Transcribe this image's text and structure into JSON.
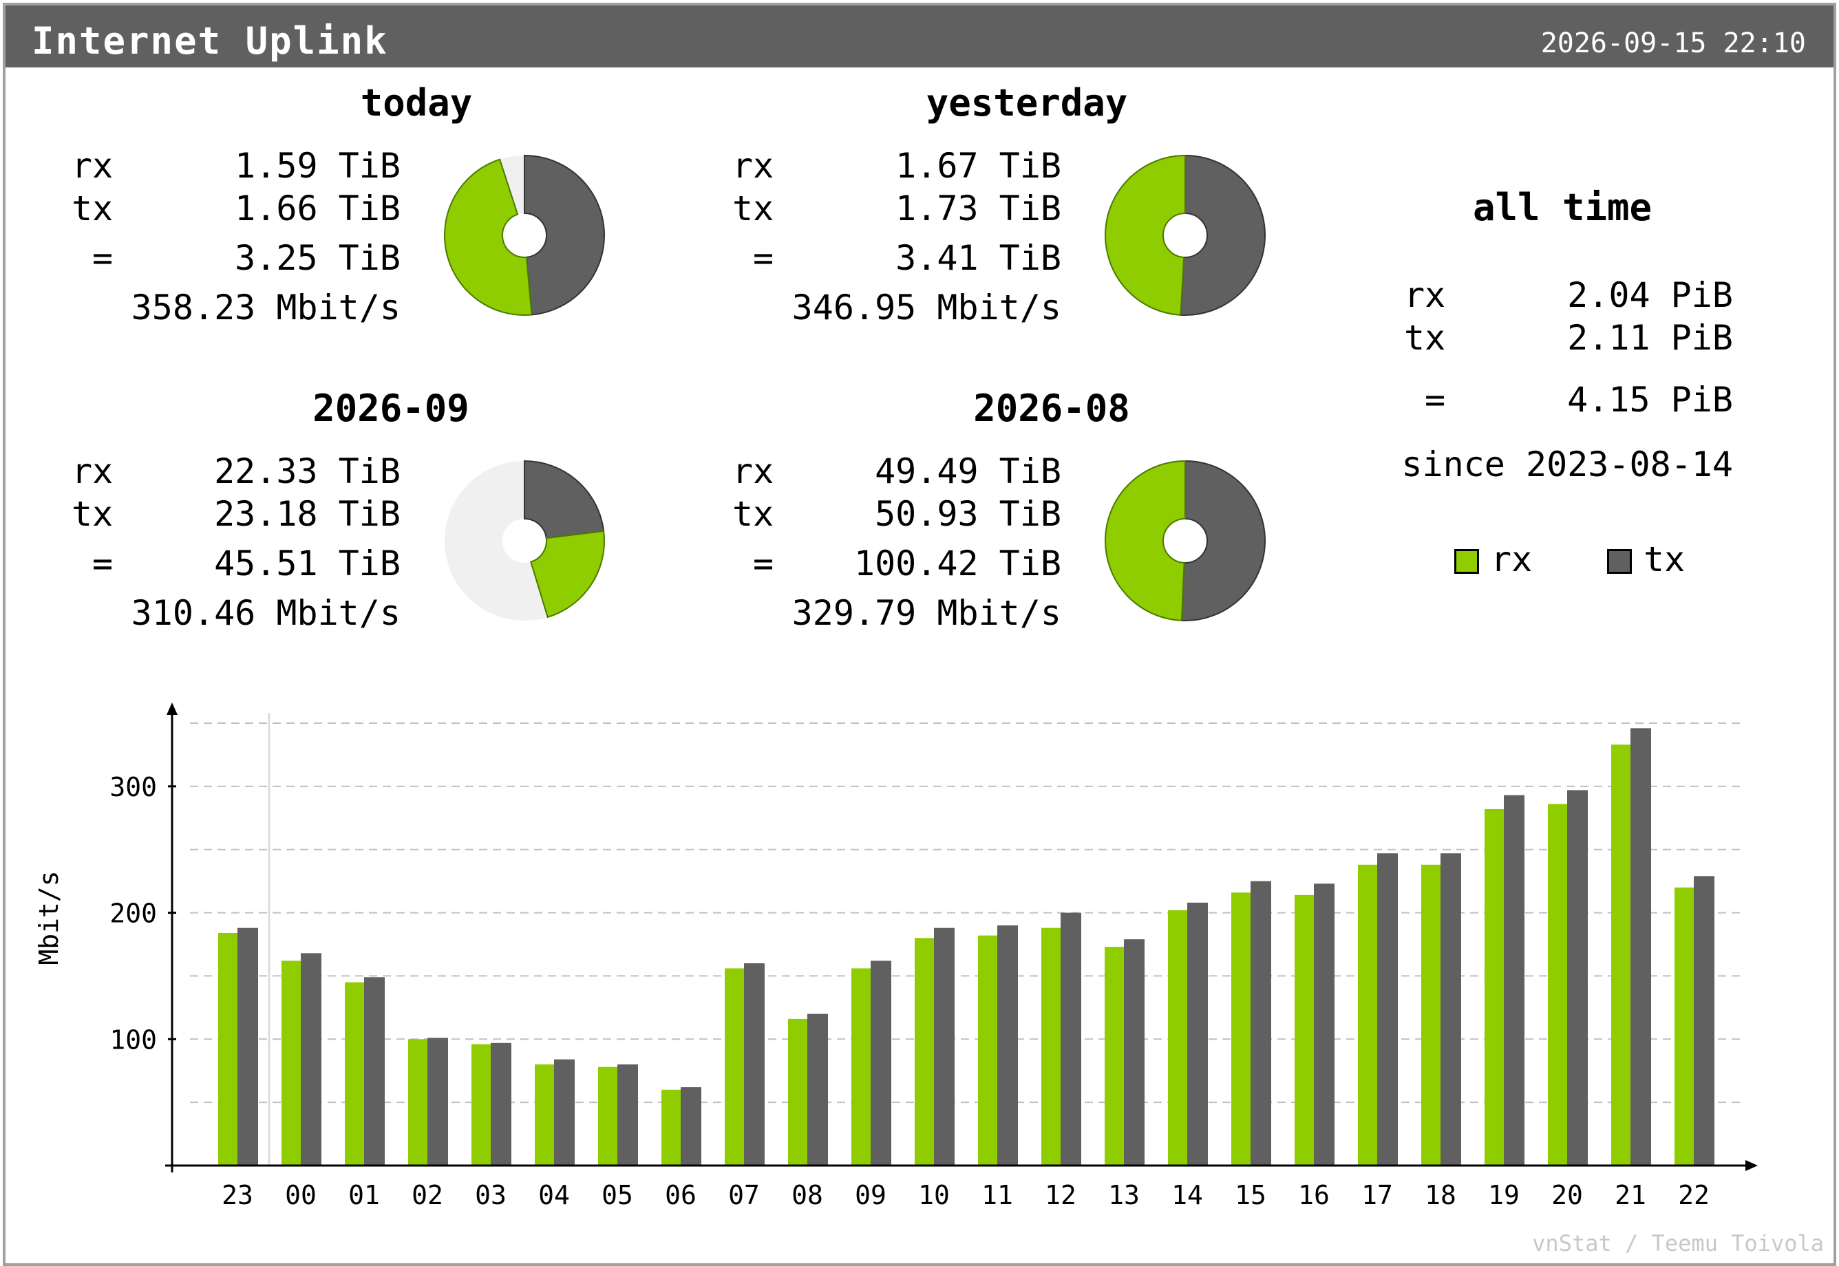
{
  "header": {
    "title": "Internet Uplink",
    "timestamp": "2026-09-15 22:10"
  },
  "summary": {
    "today": {
      "title": "today",
      "rx": "1.59 TiB",
      "tx": "1.66 TiB",
      "total": "3.25 TiB",
      "rate": "358.23 Mbit/s",
      "rx_frac": 0.489,
      "tx_frac": 0.511,
      "ring_fill": 0.95
    },
    "yesterday": {
      "title": "yesterday",
      "rx": "1.67 TiB",
      "tx": "1.73 TiB",
      "total": "3.41 TiB",
      "rate": "346.95 Mbit/s",
      "rx_frac": 0.491,
      "tx_frac": 0.509,
      "ring_fill": 1.0
    },
    "month_current": {
      "title": "2026-09",
      "rx": "22.33 TiB",
      "tx": "23.18 TiB",
      "total": "45.51 TiB",
      "rate": "310.46 Mbit/s",
      "rx_frac": 0.491,
      "tx_frac": 0.509,
      "ring_fill": 0.453
    },
    "month_previous": {
      "title": "2026-08",
      "rx": "49.49 TiB",
      "tx": "50.93 TiB",
      "total": "100.42 TiB",
      "rate": "329.79 Mbit/s",
      "rx_frac": 0.493,
      "tx_frac": 0.507,
      "ring_fill": 1.0
    },
    "labels": {
      "rx": "rx",
      "tx": "tx",
      "total": "="
    }
  },
  "all_time": {
    "title": "all time",
    "rx": "2.04 PiB",
    "tx": "2.11 PiB",
    "total": "4.15 PiB",
    "since": "since 2023-08-14"
  },
  "legend": {
    "rx": "rx",
    "tx": "tx"
  },
  "colors": {
    "rx": "#8fcc00",
    "tx": "#606060",
    "ring_bg": "#f0f0f0",
    "grid": "#c0c0c0"
  },
  "footer": "vnStat / Teemu Toivola",
  "chart_data": {
    "type": "bar",
    "categories": [
      "23",
      "00",
      "01",
      "02",
      "03",
      "04",
      "05",
      "06",
      "07",
      "08",
      "09",
      "10",
      "11",
      "12",
      "13",
      "14",
      "15",
      "16",
      "17",
      "18",
      "19",
      "20",
      "21",
      "22"
    ],
    "series": [
      {
        "name": "rx",
        "values": [
          184,
          162,
          145,
          100,
          96,
          80,
          78,
          60,
          156,
          116,
          156,
          180,
          182,
          188,
          173,
          202,
          216,
          214,
          238,
          238,
          282,
          286,
          333,
          220
        ]
      },
      {
        "name": "tx",
        "values": [
          188,
          168,
          149,
          101,
          97,
          84,
          80,
          62,
          160,
          120,
          162,
          188,
          190,
          200,
          179,
          208,
          225,
          223,
          247,
          247,
          293,
          297,
          346,
          229
        ]
      }
    ],
    "xlabel": "",
    "ylabel": "Mbit/s",
    "yticks": [
      100,
      200,
      300
    ],
    "ylim": [
      0,
      350
    ],
    "grid": true,
    "legend": "top-right"
  }
}
